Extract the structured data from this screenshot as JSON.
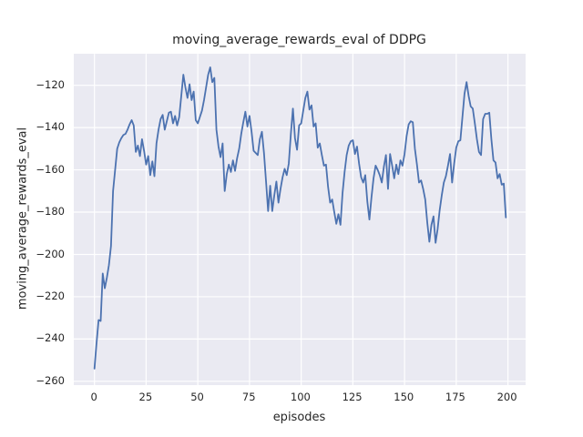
{
  "figure": {
    "title": "moving_average_rewards_eval of DDPG",
    "xlabel": "episodes",
    "ylabel": "moving_average_rewards_eval"
  },
  "chart_data": {
    "type": "line",
    "title": "moving_average_rewards_eval of DDPG",
    "xlabel": "episodes",
    "ylabel": "moving_average_rewards_eval",
    "grid": true,
    "legend": "none",
    "xlim": [
      -10.0,
      209.0
    ],
    "ylim": [
      -262.2,
      -105.1
    ],
    "x_ticks": {
      "values": [
        0,
        25,
        50,
        75,
        100,
        125,
        150,
        175,
        200
      ],
      "labels": [
        "0",
        "25",
        "50",
        "75",
        "100",
        "125",
        "150",
        "175",
        "200"
      ]
    },
    "y_ticks": {
      "values": [
        -120,
        -140,
        -160,
        -180,
        -200,
        -220,
        -240,
        -260
      ],
      "labels": [
        "−120",
        "−140",
        "−160",
        "−180",
        "−200",
        "−220",
        "−240",
        "−260"
      ]
    },
    "style": {
      "figure_bg": "#ffffff",
      "axes_bg": "#eaeaf2",
      "grid_color": "#ffffff",
      "text_color": "#262626",
      "line_color": "#4c72b0",
      "line_width": 1.8
    },
    "series": [
      {
        "name": "moving_average_rewards_eval",
        "color": "#4c72b0",
        "points": [
          [
            0,
            -254
          ],
          [
            1,
            -242
          ],
          [
            2,
            -231
          ],
          [
            3,
            -231.5
          ],
          [
            4,
            -209
          ],
          [
            5,
            -216
          ],
          [
            6,
            -211
          ],
          [
            7,
            -205
          ],
          [
            8,
            -196
          ],
          [
            9,
            -170
          ],
          [
            10,
            -160
          ],
          [
            11,
            -150
          ],
          [
            12,
            -147
          ],
          [
            13,
            -145
          ],
          [
            14,
            -143.5
          ],
          [
            15,
            -143
          ],
          [
            16,
            -141
          ],
          [
            17,
            -138.5
          ],
          [
            18,
            -136.5
          ],
          [
            19,
            -139
          ],
          [
            20,
            -151.5
          ],
          [
            21,
            -148.5
          ],
          [
            22,
            -153.5
          ],
          [
            23,
            -145.5
          ],
          [
            24,
            -151
          ],
          [
            25,
            -157.5
          ],
          [
            26,
            -153.5
          ],
          [
            27,
            -162.5
          ],
          [
            28,
            -156
          ],
          [
            29,
            -163
          ],
          [
            30,
            -147.5
          ],
          [
            31,
            -141
          ],
          [
            32,
            -136
          ],
          [
            33,
            -134
          ],
          [
            34,
            -141
          ],
          [
            35,
            -137
          ],
          [
            36,
            -133
          ],
          [
            37,
            -132.5
          ],
          [
            38,
            -138
          ],
          [
            39,
            -134.5
          ],
          [
            40,
            -139
          ],
          [
            41,
            -135
          ],
          [
            42,
            -125
          ],
          [
            43,
            -115
          ],
          [
            44,
            -121
          ],
          [
            45,
            -126
          ],
          [
            46,
            -119.5
          ],
          [
            47,
            -127
          ],
          [
            48,
            -123
          ],
          [
            49,
            -136.5
          ],
          [
            50,
            -138
          ],
          [
            51,
            -135
          ],
          [
            52,
            -132
          ],
          [
            53,
            -127
          ],
          [
            54,
            -121
          ],
          [
            55,
            -115
          ],
          [
            56,
            -111.5
          ],
          [
            57,
            -118.5
          ],
          [
            58,
            -116.5
          ],
          [
            59,
            -141
          ],
          [
            60,
            -149
          ],
          [
            61,
            -154
          ],
          [
            62,
            -147.5
          ],
          [
            63,
            -170
          ],
          [
            64,
            -162
          ],
          [
            65,
            -157.5
          ],
          [
            66,
            -161
          ],
          [
            67,
            -155.5
          ],
          [
            68,
            -160.5
          ],
          [
            69,
            -154.5
          ],
          [
            70,
            -150
          ],
          [
            71,
            -143
          ],
          [
            72,
            -137.5
          ],
          [
            73,
            -132.5
          ],
          [
            74,
            -139.5
          ],
          [
            75,
            -134.5
          ],
          [
            76,
            -142
          ],
          [
            77,
            -151
          ],
          [
            78,
            -152
          ],
          [
            79,
            -153
          ],
          [
            80,
            -145.5
          ],
          [
            81,
            -142
          ],
          [
            82,
            -152
          ],
          [
            83,
            -165.5
          ],
          [
            84,
            -179.5
          ],
          [
            85,
            -167.5
          ],
          [
            86,
            -179.5
          ],
          [
            87,
            -172
          ],
          [
            88,
            -165.5
          ],
          [
            89,
            -175.5
          ],
          [
            90,
            -169
          ],
          [
            91,
            -163.5
          ],
          [
            92,
            -159.5
          ],
          [
            93,
            -162.5
          ],
          [
            94,
            -157
          ],
          [
            95,
            -143
          ],
          [
            96,
            -131
          ],
          [
            97,
            -145
          ],
          [
            98,
            -150.5
          ],
          [
            99,
            -139
          ],
          [
            100,
            -138
          ],
          [
            101,
            -132
          ],
          [
            102,
            -126
          ],
          [
            103,
            -123
          ],
          [
            104,
            -131.5
          ],
          [
            105,
            -129.5
          ],
          [
            106,
            -139.5
          ],
          [
            107,
            -138
          ],
          [
            108,
            -149.5
          ],
          [
            109,
            -147.5
          ],
          [
            110,
            -153
          ],
          [
            111,
            -158
          ],
          [
            112,
            -157.5
          ],
          [
            113,
            -168
          ],
          [
            114,
            -175.5
          ],
          [
            115,
            -174
          ],
          [
            116,
            -180
          ],
          [
            117,
            -185.5
          ],
          [
            118,
            -181
          ],
          [
            119,
            -186
          ],
          [
            120,
            -171
          ],
          [
            121,
            -161
          ],
          [
            122,
            -153
          ],
          [
            123,
            -148.5
          ],
          [
            124,
            -146.5
          ],
          [
            125,
            -146
          ],
          [
            126,
            -152.5
          ],
          [
            127,
            -149
          ],
          [
            128,
            -157
          ],
          [
            129,
            -163.5
          ],
          [
            130,
            -166
          ],
          [
            131,
            -162.5
          ],
          [
            132,
            -175
          ],
          [
            133,
            -183.5
          ],
          [
            134,
            -173
          ],
          [
            135,
            -164
          ],
          [
            136,
            -158
          ],
          [
            137,
            -160
          ],
          [
            138,
            -162.5
          ],
          [
            139,
            -166
          ],
          [
            140,
            -158.5
          ],
          [
            141,
            -153
          ],
          [
            142,
            -169
          ],
          [
            143,
            -152.5
          ],
          [
            144,
            -158
          ],
          [
            145,
            -164
          ],
          [
            146,
            -157.5
          ],
          [
            147,
            -162
          ],
          [
            148,
            -155.5
          ],
          [
            149,
            -158
          ],
          [
            150,
            -152.5
          ],
          [
            151,
            -144
          ],
          [
            152,
            -138.5
          ],
          [
            153,
            -137
          ],
          [
            154,
            -137.5
          ],
          [
            155,
            -150
          ],
          [
            156,
            -157.5
          ],
          [
            157,
            -166
          ],
          [
            158,
            -165
          ],
          [
            159,
            -169
          ],
          [
            160,
            -174
          ],
          [
            161,
            -185
          ],
          [
            162,
            -194
          ],
          [
            163,
            -186
          ],
          [
            164,
            -182
          ],
          [
            165,
            -194.5
          ],
          [
            166,
            -188
          ],
          [
            167,
            -179
          ],
          [
            168,
            -172
          ],
          [
            169,
            -166
          ],
          [
            170,
            -163
          ],
          [
            171,
            -158
          ],
          [
            172,
            -152.5
          ],
          [
            173,
            -166
          ],
          [
            174,
            -157
          ],
          [
            175,
            -149.5
          ],
          [
            176,
            -146.5
          ],
          [
            177,
            -146
          ],
          [
            178,
            -135
          ],
          [
            179,
            -124
          ],
          [
            180,
            -118.5
          ],
          [
            181,
            -125
          ],
          [
            182,
            -130
          ],
          [
            183,
            -131
          ],
          [
            184,
            -138
          ],
          [
            185,
            -145.5
          ],
          [
            186,
            -151.5
          ],
          [
            187,
            -153
          ],
          [
            188,
            -136
          ],
          [
            189,
            -133.5
          ],
          [
            190,
            -133.5
          ],
          [
            191,
            -133
          ],
          [
            192,
            -145.5
          ],
          [
            193,
            -155.5
          ],
          [
            194,
            -156.5
          ],
          [
            195,
            -164
          ],
          [
            196,
            -162
          ],
          [
            197,
            -167
          ],
          [
            198,
            -166.5
          ],
          [
            199,
            -182.5
          ]
        ]
      }
    ]
  }
}
